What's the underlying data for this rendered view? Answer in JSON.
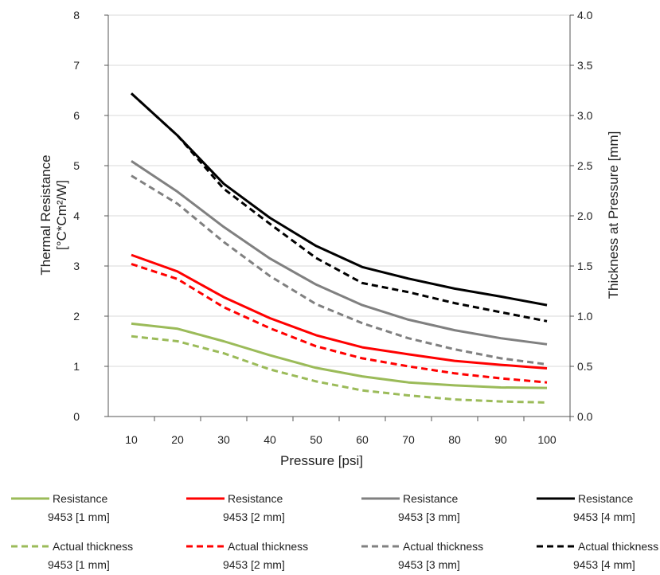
{
  "chart_data": {
    "type": "line",
    "title": "",
    "xlabel": "Pressure [psi]",
    "ylabel_left_line1": "Thermal Resistance",
    "ylabel_left_line2": "[°C*Cm²/W]",
    "ylabel_right": "Thickness at Pressure [mm]",
    "x": [
      10,
      20,
      30,
      40,
      50,
      60,
      70,
      80,
      90,
      100
    ],
    "xlim": [
      5,
      105
    ],
    "ylim_left": [
      0,
      8
    ],
    "ylim_right": [
      0,
      4
    ],
    "yticks_left": [
      "0",
      "1",
      "2",
      "3",
      "4",
      "5",
      "6",
      "7",
      "8"
    ],
    "yticks_right": [
      "0.0",
      "0.5",
      "1.0",
      "1.5",
      "2.0",
      "2.5",
      "3.0",
      "3.5",
      "4.0"
    ],
    "xticks": [
      "10",
      "20",
      "30",
      "40",
      "50",
      "60",
      "70",
      "80",
      "90",
      "100"
    ],
    "grid": true,
    "legend_position": "bottom",
    "series": [
      {
        "name": "Resistance",
        "sub": "9453 [1 mm]",
        "axis": "left",
        "color": "#9bbb59",
        "dash": "solid",
        "values": [
          1.85,
          1.75,
          1.5,
          1.22,
          0.97,
          0.8,
          0.68,
          0.62,
          0.58,
          0.57
        ]
      },
      {
        "name": "Resistance",
        "sub": "9453 [2 mm]",
        "axis": "left",
        "color": "#ff0000",
        "dash": "solid",
        "values": [
          3.22,
          2.89,
          2.38,
          1.96,
          1.62,
          1.38,
          1.24,
          1.11,
          1.03,
          0.96
        ]
      },
      {
        "name": "Resistance",
        "sub": "9453 [3 mm]",
        "axis": "left",
        "color": "#808080",
        "dash": "solid",
        "values": [
          5.09,
          4.48,
          3.78,
          3.15,
          2.63,
          2.22,
          1.93,
          1.72,
          1.56,
          1.44
        ]
      },
      {
        "name": "Resistance",
        "sub": "9453 [4 mm]",
        "axis": "left",
        "color": "#000000",
        "dash": "solid",
        "values": [
          6.44,
          5.6,
          4.64,
          3.96,
          3.4,
          2.98,
          2.75,
          2.55,
          2.39,
          2.22
        ]
      },
      {
        "name": "Actual thickness",
        "sub": "9453 [1 mm]",
        "axis": "right",
        "color": "#9bbb59",
        "dash": "dashed",
        "values": [
          0.8,
          0.75,
          0.63,
          0.47,
          0.35,
          0.26,
          0.21,
          0.17,
          0.15,
          0.14
        ]
      },
      {
        "name": "Actual thickness",
        "sub": "9453 [2 mm]",
        "axis": "right",
        "color": "#ff0000",
        "dash": "dashed",
        "values": [
          1.52,
          1.37,
          1.09,
          0.88,
          0.7,
          0.58,
          0.5,
          0.43,
          0.38,
          0.34
        ]
      },
      {
        "name": "Actual thickness",
        "sub": "9453 [3 mm]",
        "axis": "right",
        "color": "#808080",
        "dash": "dashed",
        "values": [
          2.4,
          2.12,
          1.74,
          1.4,
          1.12,
          0.93,
          0.78,
          0.67,
          0.58,
          0.52
        ]
      },
      {
        "name": "Actual thickness",
        "sub": "9453 [4 mm]",
        "axis": "right",
        "color": "#000000",
        "dash": "dashed",
        "values": [
          3.22,
          2.8,
          2.27,
          1.92,
          1.58,
          1.33,
          1.24,
          1.13,
          1.04,
          0.95
        ]
      }
    ]
  }
}
